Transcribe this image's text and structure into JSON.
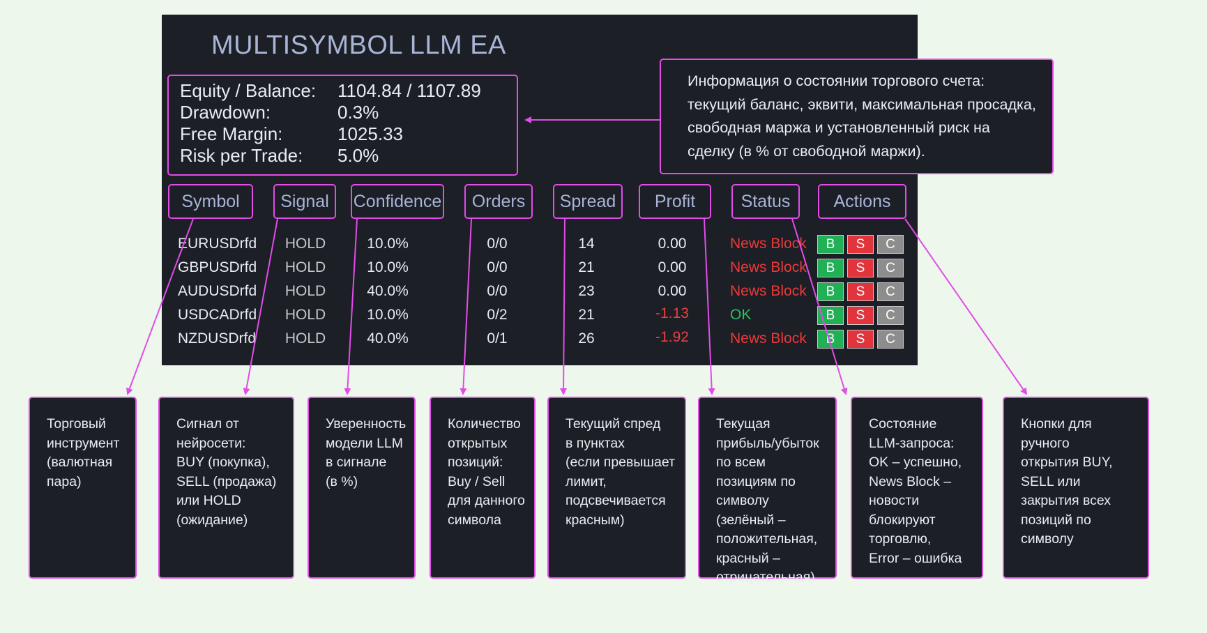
{
  "title": "MULTISYMBOL LLM EA",
  "account": {
    "rows": [
      {
        "label": "Equity / Balance:",
        "value": "1104.84 / 1107.89"
      },
      {
        "label": "Drawdown:",
        "value": "0.3%"
      },
      {
        "label": "Free Margin:",
        "value": "1025.33"
      },
      {
        "label": "Risk per Trade:",
        "value": "5.0%"
      }
    ]
  },
  "account_note": "Информация о состоянии торгового счета: текущий баланс, эквити, максимальная просадка, свободная маржа и установленный риск на сделку (в % от свободной маржи).",
  "columns": [
    "Symbol",
    "Signal",
    "Confidence",
    "Orders",
    "Spread",
    "Profit",
    "Status",
    "Actions"
  ],
  "rows": [
    {
      "symbol": "EURUSDrfd",
      "signal": "HOLD",
      "confidence": "10.0%",
      "orders": "0/0",
      "spread": "14",
      "profit": "0.00",
      "status": "News Block"
    },
    {
      "symbol": "GBPUSDrfd",
      "signal": "HOLD",
      "confidence": "10.0%",
      "orders": "0/0",
      "spread": "21",
      "profit": "0.00",
      "status": "News Block"
    },
    {
      "symbol": "AUDUSDrfd",
      "signal": "HOLD",
      "confidence": "40.0%",
      "orders": "0/0",
      "spread": "23",
      "profit": "0.00",
      "status": "News Block"
    },
    {
      "symbol": "USDCADrfd",
      "signal": "HOLD",
      "confidence": "10.0%",
      "orders": "0/2",
      "spread": "21",
      "profit": "-1.13",
      "status": "OK"
    },
    {
      "symbol": "NZDUSDrfd",
      "signal": "HOLD",
      "confidence": "40.0%",
      "orders": "0/1",
      "spread": "26",
      "profit": "-1.92",
      "status": "News Block"
    }
  ],
  "buttons": {
    "buy": "B",
    "sell": "S",
    "close": "C"
  },
  "cards": [
    {
      "lines": [
        "Торговый",
        "инструмент",
        "(валютная",
        "пара)"
      ]
    },
    {
      "lines": [
        "Сигнал от",
        "нейросети:",
        "BUY (покупка),",
        "SELL (продажа)",
        "или HOLD",
        "(ожидание)"
      ]
    },
    {
      "lines": [
        "Уверенность",
        "модели LLM",
        "в сигнале",
        "(в %)"
      ]
    },
    {
      "lines": [
        "Количество",
        "открытых",
        "позиций:",
        "Buy / Sell",
        "для данного",
        "символа"
      ]
    },
    {
      "lines": [
        "Текущий спред",
        "в пунктах",
        "(если превышает",
        "лимит,",
        "подсвечивается",
        "красным)"
      ]
    },
    {
      "lines": [
        "Текущая",
        "прибыль/убыток",
        "по всем",
        "позициям по",
        "символу (зелёный –",
        "положительная,",
        "красный –",
        "отрицательная)"
      ]
    },
    {
      "lines": [
        "Состояние",
        "LLM-запроса:",
        "OK – успешно,",
        "News Block –",
        "новости",
        "блокируют",
        "торговлю,",
        "Error – ошибка"
      ]
    },
    {
      "lines": [
        "Кнопки для",
        "ручного",
        "открытия BUY,",
        "SELL или",
        "закрытия всех",
        "позиций по",
        "символу"
      ]
    }
  ],
  "colors": {
    "background": "#eef7ec",
    "panel": "#1c1f26",
    "accent_border": "#e24ce8",
    "header_text": "#a9b4d6",
    "negative": "#ef3f3f",
    "positive": "#2fbf5e",
    "buy_button": "#21b056",
    "sell_button": "#e2343c",
    "close_button": "#8d8d8d"
  }
}
